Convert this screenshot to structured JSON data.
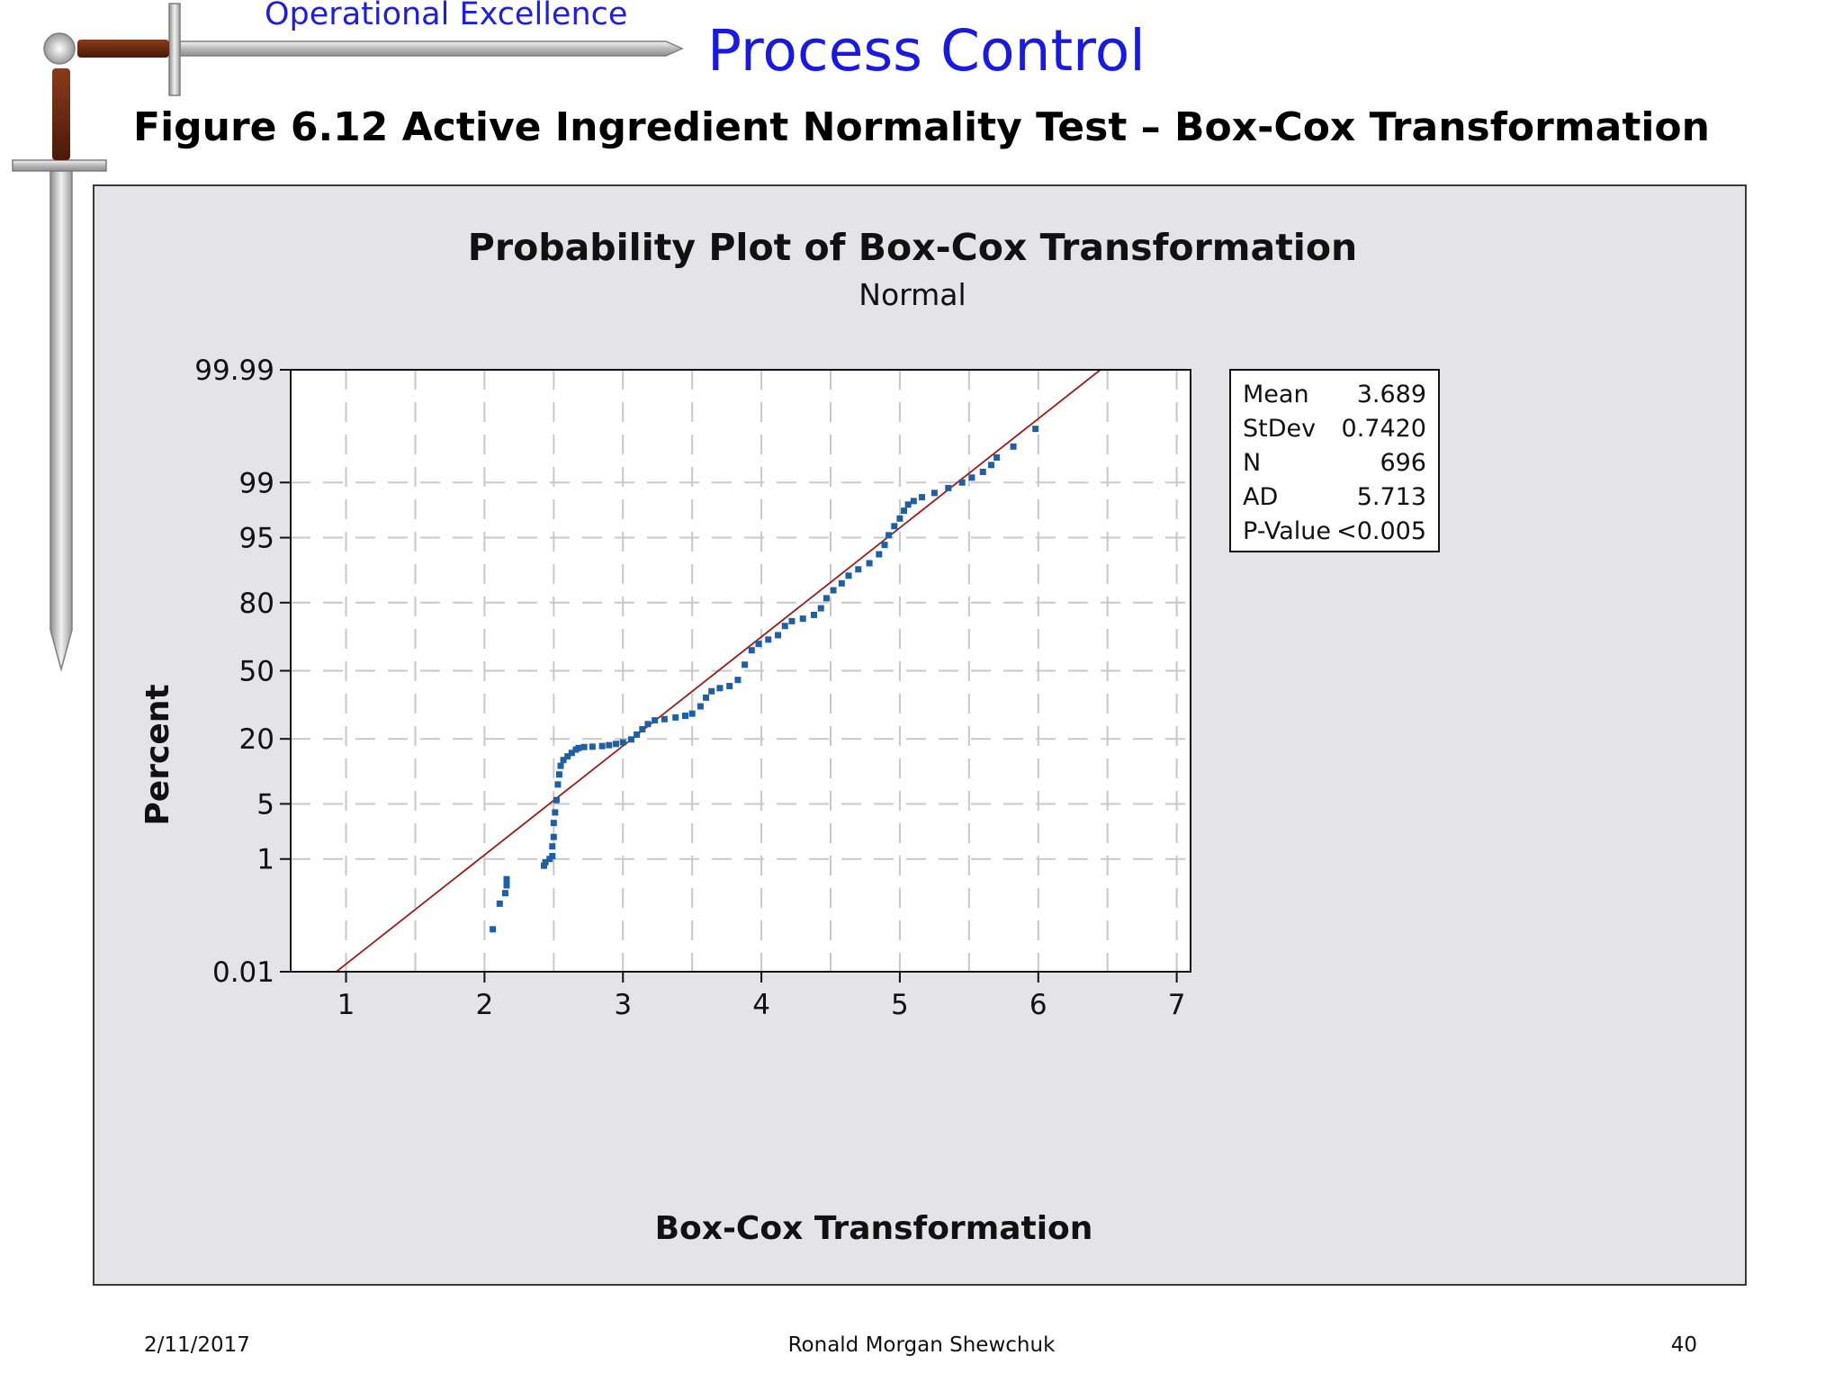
{
  "slide": {
    "brand": "Operational Excellence",
    "title": "Process Control",
    "figure_caption": "Figure 6.12  Active Ingredient Normality Test – Box-Cox Transformation"
  },
  "footer": {
    "date": "2/11/2017",
    "author": "Ronald Morgan Shewchuk",
    "page": "40"
  },
  "colors": {
    "points": "#1f5fa3",
    "fit_line": "#9e1b1b",
    "panel": "#e4e3e8",
    "plot_bg": "#ffffff",
    "grid": "#c8c8c8",
    "brand_blue": "#1f1fd6"
  },
  "chart_data": {
    "type": "scatter",
    "title": "Probability Plot of Box-Cox Transformation",
    "subtitle": "Normal",
    "xlabel": "Box-Cox Transformation",
    "ylabel": "Percent",
    "xlim": [
      0.6,
      7.1
    ],
    "ylim": [
      0.01,
      99.99
    ],
    "y_scale": "normal-probability",
    "x_ticks": [
      1,
      2,
      3,
      4,
      5,
      6,
      7
    ],
    "y_ticks": [
      0.01,
      1,
      5,
      20,
      50,
      80,
      95,
      99,
      99.99
    ],
    "y_tick_labels": [
      "0.01",
      "1",
      "5",
      "20",
      "50",
      "80",
      "95",
      "99",
      "99.99"
    ],
    "grid": true,
    "fit_line": {
      "mean": 3.689,
      "stdev": 0.742
    },
    "stats_box": {
      "placement": "right",
      "rows": [
        {
          "label": "Mean",
          "value": "3.689"
        },
        {
          "label": "StDev",
          "value": "0.7420"
        },
        {
          "label": "N",
          "value": "696"
        },
        {
          "label": "AD",
          "value": "5.713"
        },
        {
          "label": "P-Value",
          "value": "<0.005"
        }
      ]
    },
    "series": [
      {
        "points": [
          [
            2.06,
            0.07
          ],
          [
            2.11,
            0.2
          ],
          [
            2.15,
            0.3
          ],
          [
            2.16,
            0.4
          ],
          [
            2.16,
            0.5
          ],
          [
            2.43,
            0.8
          ],
          [
            2.44,
            0.9
          ],
          [
            2.47,
            1.0
          ],
          [
            2.49,
            1.1
          ],
          [
            2.49,
            1.5
          ],
          [
            2.5,
            2.0
          ],
          [
            2.5,
            3.0
          ],
          [
            2.51,
            4.0
          ],
          [
            2.52,
            5.5
          ],
          [
            2.53,
            8.0
          ],
          [
            2.54,
            10.0
          ],
          [
            2.55,
            12.0
          ],
          [
            2.57,
            13.5
          ],
          [
            2.6,
            14.5
          ],
          [
            2.63,
            15.5
          ],
          [
            2.66,
            16.5
          ],
          [
            2.68,
            17.0
          ],
          [
            2.72,
            17.3
          ],
          [
            2.78,
            17.4
          ],
          [
            2.85,
            17.6
          ],
          [
            2.9,
            17.9
          ],
          [
            2.95,
            18.3
          ],
          [
            3.0,
            18.8
          ],
          [
            3.06,
            19.8
          ],
          [
            3.1,
            21.5
          ],
          [
            3.14,
            23.5
          ],
          [
            3.18,
            25.5
          ],
          [
            3.23,
            27.0
          ],
          [
            3.3,
            27.5
          ],
          [
            3.38,
            28.2
          ],
          [
            3.45,
            28.9
          ],
          [
            3.5,
            29.8
          ],
          [
            3.56,
            33.0
          ],
          [
            3.6,
            37.0
          ],
          [
            3.64,
            40.0
          ],
          [
            3.7,
            41.5
          ],
          [
            3.77,
            42.5
          ],
          [
            3.83,
            45.5
          ],
          [
            3.88,
            53.0
          ],
          [
            3.93,
            60.0
          ],
          [
            3.98,
            63.0
          ],
          [
            4.05,
            65.0
          ],
          [
            4.12,
            67.0
          ],
          [
            4.17,
            71.0
          ],
          [
            4.22,
            73.0
          ],
          [
            4.3,
            74.0
          ],
          [
            4.38,
            75.5
          ],
          [
            4.43,
            78.0
          ],
          [
            4.47,
            81.5
          ],
          [
            4.52,
            84.0
          ],
          [
            4.58,
            86.0
          ],
          [
            4.63,
            88.0
          ],
          [
            4.7,
            89.5
          ],
          [
            4.78,
            90.8
          ],
          [
            4.85,
            92.5
          ],
          [
            4.89,
            94.0
          ],
          [
            4.92,
            95.3
          ],
          [
            4.96,
            96.3
          ],
          [
            5.0,
            97.0
          ],
          [
            5.03,
            97.6
          ],
          [
            5.06,
            98.0
          ],
          [
            5.1,
            98.2
          ],
          [
            5.16,
            98.4
          ],
          [
            5.25,
            98.6
          ],
          [
            5.35,
            98.8
          ],
          [
            5.45,
            99.0
          ],
          [
            5.52,
            99.15
          ],
          [
            5.6,
            99.3
          ],
          [
            5.66,
            99.45
          ],
          [
            5.7,
            99.58
          ],
          [
            5.82,
            99.72
          ],
          [
            5.98,
            99.86
          ]
        ]
      }
    ]
  }
}
